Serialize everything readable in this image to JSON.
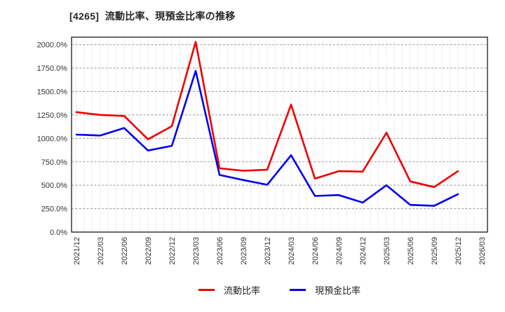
{
  "page": {
    "background": "#ffffff"
  },
  "header": {
    "title": "[4265]  流動比率、現預金比率の推移"
  },
  "chart_data": {
    "type": "line",
    "title": "[4265]  流動比率、現預金比率の推移",
    "categories": [
      "2021/12",
      "2022/03",
      "2022/06",
      "2022/09",
      "2022/12",
      "2023/03",
      "2023/06",
      "2023/09",
      "2023/12",
      "2024/03",
      "2024/06",
      "2024/09",
      "2024/12",
      "2025/03",
      "2025/06",
      "2025/09",
      "2025/12",
      "2026/03"
    ],
    "series": [
      {
        "id": "current-ratio",
        "name": "流動比率",
        "color": "#ee0000",
        "values": [
          1280,
          1250,
          1240,
          990,
          1130,
          2030,
          680,
          655,
          665,
          1360,
          570,
          650,
          645,
          1060,
          540,
          480,
          650
        ]
      },
      {
        "id": "cash-deposit-ratio",
        "name": "現預金比率",
        "color": "#0000ee",
        "values": [
          1040,
          1030,
          1110,
          870,
          920,
          1720,
          610,
          555,
          505,
          820,
          385,
          395,
          315,
          500,
          290,
          280,
          405
        ]
      }
    ],
    "xlabel": "",
    "ylabel": "",
    "y_ticks": [
      {
        "value": 0,
        "label": "0.0%"
      },
      {
        "value": 250,
        "label": "250.0%"
      },
      {
        "value": 500,
        "label": "500.0%"
      },
      {
        "value": 750,
        "label": "750.0%"
      },
      {
        "value": 1000,
        "label": "1000.0%"
      },
      {
        "value": 1250,
        "label": "1250.0%"
      },
      {
        "value": 1500,
        "label": "1500.0%"
      },
      {
        "value": 1750,
        "label": "1750.0%"
      },
      {
        "value": 2000,
        "label": "2000.0%"
      }
    ],
    "ylim": [
      0,
      2080
    ],
    "grid": {
      "horizontal": "major-250-dashed",
      "vertical": "monthly-dotted"
    },
    "legend_position": "bottom-center",
    "frame": true
  },
  "style_colors": {
    "frame": "#1a1a1a",
    "h_grid": "#999999",
    "v_grid": "#c9c9c9",
    "tick_label": "#333333"
  }
}
